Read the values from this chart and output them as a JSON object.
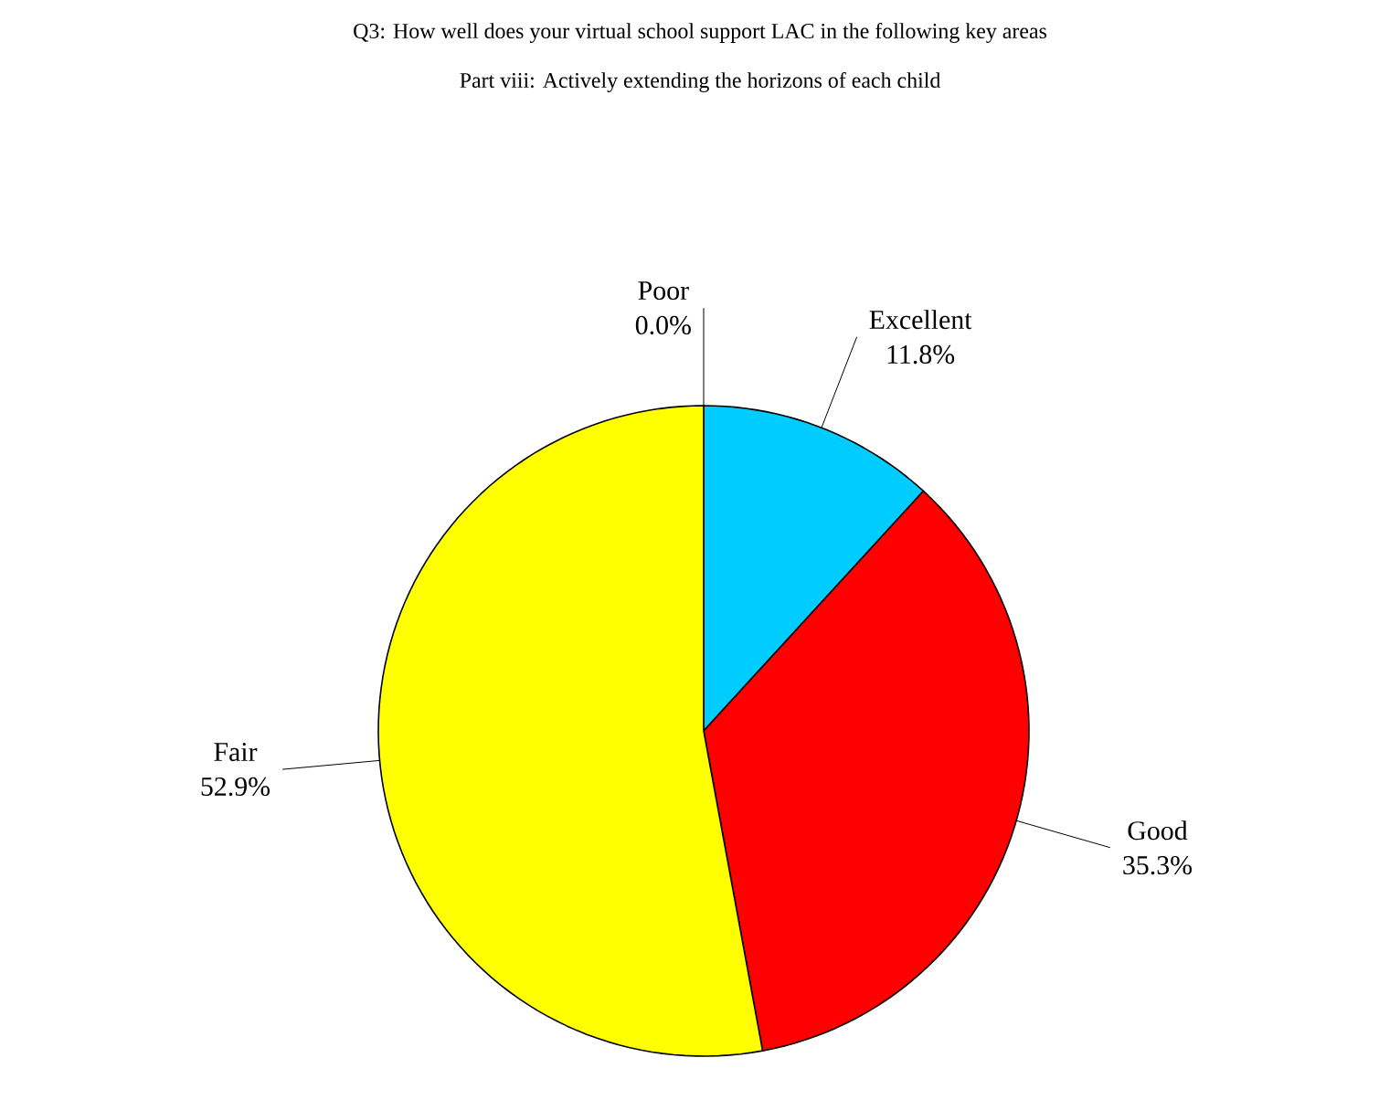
{
  "chart_data": {
    "type": "pie",
    "title": "Q3: How well does your virtual school support LAC in the following key areas",
    "subtitle": "Part viii: Actively extending the horizons of each child",
    "categories": [
      "Excellent",
      "Good",
      "Fair",
      "Poor"
    ],
    "values": [
      11.8,
      35.3,
      52.9,
      0.0
    ],
    "colors": [
      "#00ccff",
      "#ff0000",
      "#ffff00",
      "#9999ff"
    ],
    "value_labels": [
      "11.8%",
      "35.3%",
      "52.9%",
      "0.0%"
    ]
  }
}
